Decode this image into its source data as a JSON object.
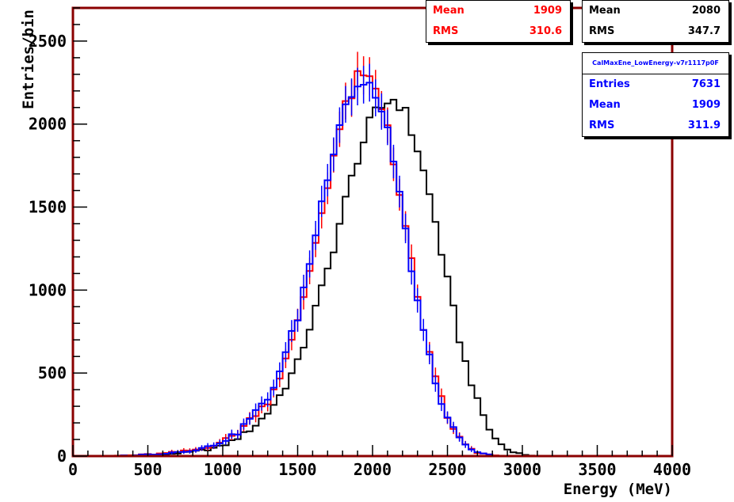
{
  "chart_data": {
    "type": "step-histogram",
    "xlabel": "Energy (MeV)",
    "ylabel": "Entries/bin",
    "xlim": [
      0,
      4000
    ],
    "ylim": [
      0,
      2700
    ],
    "x_ticks": [
      0,
      500,
      1000,
      1500,
      2000,
      2500,
      3000,
      3500,
      4000
    ],
    "y_ticks": [
      0,
      500,
      1000,
      1500,
      2000,
      2500
    ],
    "bin_width": 40,
    "grid": false,
    "series": [
      {
        "color": "#000000",
        "stats": {
          "mean": 2080,
          "rms": 347.7
        },
        "x": [
          400,
          600,
          800,
          900,
          1000,
          1100,
          1200,
          1300,
          1400,
          1500,
          1600,
          1700,
          1800,
          1900,
          2000,
          2100,
          2150,
          2200,
          2300,
          2400,
          2500,
          2600,
          2700,
          2800,
          2900,
          3000,
          3100
        ],
        "y": [
          5,
          10,
          25,
          40,
          60,
          110,
          170,
          260,
          390,
          560,
          830,
          1120,
          1470,
          1800,
          2040,
          2140,
          2150,
          2110,
          1850,
          1500,
          1050,
          620,
          330,
          120,
          40,
          10,
          0
        ]
      },
      {
        "color": "#ff0000",
        "stats": {
          "mean": 1909,
          "rms": 310.6
        },
        "x": [
          400,
          600,
          800,
          900,
          1000,
          1100,
          1200,
          1300,
          1400,
          1500,
          1600,
          1700,
          1800,
          1900,
          1950,
          2000,
          2100,
          2200,
          2300,
          2400,
          2500,
          2600,
          2700,
          2800,
          2900,
          3000
        ],
        "y": [
          5,
          15,
          35,
          55,
          90,
          140,
          240,
          330,
          520,
          800,
          1200,
          1650,
          2050,
          2270,
          2280,
          2250,
          2000,
          1480,
          950,
          520,
          230,
          80,
          20,
          5,
          0,
          0
        ]
      },
      {
        "color": "#0000ff",
        "stats": {
          "title": "CalMaxEne_LowEnergy-v7r1117p0F",
          "entries": 7631,
          "mean": 1909,
          "rms": 311.9
        },
        "x": [
          400,
          600,
          800,
          900,
          1000,
          1100,
          1200,
          1300,
          1400,
          1500,
          1600,
          1700,
          1800,
          1900,
          1950,
          2000,
          2100,
          2200,
          2300,
          2400,
          2500,
          2600,
          2700,
          2800,
          2900,
          3000
        ],
        "y": [
          5,
          15,
          35,
          55,
          90,
          140,
          250,
          340,
          560,
          840,
          1250,
          1700,
          2100,
          2240,
          2250,
          2230,
          1970,
          1460,
          930,
          500,
          220,
          75,
          20,
          5,
          0,
          0
        ]
      }
    ]
  },
  "stats_boxes": {
    "red": {
      "mean_label": "Mean",
      "mean_value": "1909",
      "rms_label": "RMS",
      "rms_value": "310.6"
    },
    "black": {
      "mean_label": "Mean",
      "mean_value": "2080",
      "rms_label": "RMS",
      "rms_value": "347.7"
    },
    "blue": {
      "title": "CalMaxEne_LowEnergy-v7r1117p0F",
      "entries_label": "Entries",
      "entries_value": "7631",
      "mean_label": "Mean",
      "mean_value": "1909",
      "rms_label": "RMS",
      "rms_value": "311.9"
    }
  },
  "colors": {
    "frame": "#8b0000",
    "black_series": "#000000",
    "red_series": "#ff0000",
    "blue_series": "#0000ff"
  }
}
